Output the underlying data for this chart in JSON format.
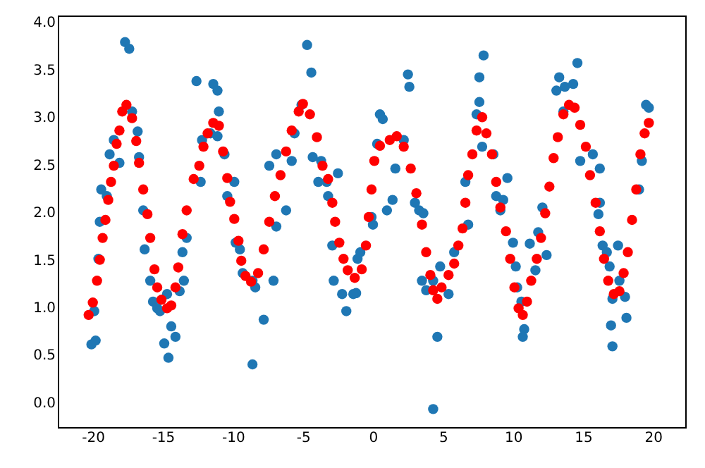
{
  "chart_data": {
    "type": "scatter",
    "xlim": [
      -22.5,
      22.3
    ],
    "ylim": [
      -0.26,
      4.07
    ],
    "xticks": [
      -20,
      -15,
      -10,
      -5,
      0,
      5,
      10,
      15,
      20
    ],
    "yticks": [
      {
        "value": 0,
        "label": "0.0"
      },
      {
        "value": 0.5,
        "label": "0.5"
      },
      {
        "value": 1,
        "label": "1.0"
      },
      {
        "value": 1.5,
        "label": "1.5"
      },
      {
        "value": 2,
        "label": "2.0"
      },
      {
        "value": 2.5,
        "label": "2.5"
      },
      {
        "value": 3,
        "label": "3.0"
      },
      {
        "value": 3.5,
        "label": "3.5"
      },
      {
        "value": 4,
        "label": "4.0"
      }
    ],
    "grid": false,
    "marker": "circle",
    "series": [
      {
        "color": "#1f77b4",
        "x": [
          -20.1,
          -19.8,
          -19.9,
          -19.6,
          -19.5,
          -19.0,
          -19.4,
          -18.8,
          -18.1,
          -18.5,
          -17.7,
          -17.4,
          -17.2,
          -16.8,
          -16.7,
          -16.4,
          -16.3,
          -15.9,
          -15.7,
          -15.4,
          -15.2,
          -14.9,
          -14.4,
          -14.6,
          -14.1,
          -14.7,
          -13.8,
          -13.6,
          -13.5,
          -13.3,
          -12.6,
          -12.3,
          -12.2,
          -11.6,
          -11.4,
          -11.1,
          -11.0,
          -11.1,
          -10.6,
          -10.4,
          -9.9,
          -9.8,
          -9.5,
          -9.3,
          -8.6,
          -8.4,
          -8.6,
          -7.8,
          -7.4,
          -6.9,
          -7.1,
          -6.9,
          -6.2,
          -5.8,
          -5.6,
          -5.1,
          -4.7,
          -4.4,
          -4.3,
          -3.9,
          -3.7,
          -3.3,
          -3.2,
          -2.9,
          -2.8,
          -2.2,
          -1.9,
          -2.5,
          -1.1,
          -1.2,
          -1.4,
          -0.9,
          -0.1,
          0.0,
          0.3,
          0.5,
          0.7,
          1.0,
          1.4,
          2.5,
          2.6,
          2.2,
          1.6,
          3.0,
          3.3,
          3.6,
          3.5,
          3.8,
          4.3,
          4.8,
          4.6,
          4.3,
          5.4,
          5.8,
          6.6,
          6.8,
          7.4,
          7.6,
          7.9,
          7.8,
          7.6,
          8.6,
          8.8,
          9.3,
          9.1,
          9.6,
          10.0,
          10.2,
          10.3,
          10.6,
          10.8,
          10.7,
          11.2,
          11.6,
          11.8,
          12.1,
          12.4,
          13.1,
          13.3,
          13.7,
          13.6,
          14.3,
          14.6,
          14.8,
          15.7,
          16.2,
          16.2,
          16.1,
          16.4,
          16.7,
          16.9,
          17.1,
          17.5,
          17.0,
          17.6,
          18.0,
          18.1,
          17.1,
          19.5,
          19.7,
          19.2,
          19.0
        ],
        "values": [
          0.61,
          0.65,
          0.96,
          1.51,
          1.9,
          2.17,
          2.24,
          2.61,
          2.52,
          2.76,
          3.79,
          3.72,
          3.06,
          2.85,
          2.58,
          2.02,
          1.61,
          1.28,
          1.06,
          0.99,
          0.96,
          0.62,
          0.8,
          0.47,
          0.69,
          1.14,
          1.17,
          1.58,
          1.28,
          1.73,
          3.38,
          2.32,
          2.76,
          2.83,
          3.35,
          3.28,
          3.06,
          2.8,
          2.61,
          2.17,
          2.32,
          1.68,
          1.61,
          1.36,
          1.28,
          1.21,
          0.4,
          0.87,
          2.49,
          2.61,
          1.28,
          1.85,
          2.02,
          2.54,
          2.83,
          3.13,
          3.76,
          3.47,
          2.58,
          2.32,
          2.54,
          2.32,
          2.17,
          1.65,
          1.28,
          1.14,
          0.96,
          2.41,
          1.51,
          1.15,
          1.14,
          1.58,
          1.95,
          1.87,
          2.72,
          3.03,
          2.98,
          2.02,
          2.13,
          3.45,
          3.32,
          2.76,
          2.46,
          2.1,
          2.02,
          1.99,
          1.28,
          1.18,
          1.28,
          1.43,
          0.69,
          -0.07,
          1.14,
          1.58,
          2.32,
          1.87,
          3.03,
          3.16,
          3.65,
          2.69,
          3.42,
          2.61,
          2.17,
          2.13,
          2.02,
          2.36,
          1.68,
          1.43,
          1.21,
          1.06,
          0.77,
          0.69,
          1.67,
          1.39,
          1.79,
          2.05,
          1.55,
          3.28,
          3.42,
          3.32,
          3.06,
          3.35,
          3.57,
          2.54,
          2.61,
          2.46,
          2.1,
          1.98,
          1.65,
          1.58,
          1.43,
          1.09,
          1.65,
          0.81,
          1.28,
          1.11,
          0.89,
          0.59,
          3.13,
          3.1,
          2.54,
          2.24
        ]
      },
      {
        "color": "#ff0000",
        "x": [
          -20.3,
          -20.0,
          -19.7,
          -19.5,
          -19.3,
          -19.1,
          -18.9,
          -18.7,
          -18.5,
          -18.3,
          -18.1,
          -17.9,
          -17.6,
          -17.2,
          -16.9,
          -16.7,
          -16.4,
          -16.1,
          -15.9,
          -15.6,
          -15.4,
          -15.1,
          -14.7,
          -14.4,
          -14.1,
          -13.9,
          -13.6,
          -13.3,
          -12.8,
          -12.4,
          -12.1,
          -11.8,
          -11.4,
          -11.0,
          -10.7,
          -10.4,
          -10.2,
          -9.9,
          -9.6,
          -9.4,
          -9.1,
          -8.7,
          -8.2,
          -7.8,
          -7.4,
          -7.0,
          -6.6,
          -6.2,
          -5.8,
          -5.3,
          -5.0,
          -4.5,
          -4.0,
          -3.6,
          -3.2,
          -2.9,
          -2.7,
          -2.4,
          -2.1,
          -1.8,
          -1.3,
          -0.8,
          -0.5,
          -0.3,
          -0.1,
          0.1,
          0.5,
          1.2,
          1.7,
          2.2,
          2.7,
          3.1,
          3.5,
          3.8,
          4.1,
          4.3,
          4.6,
          4.9,
          5.4,
          5.8,
          6.1,
          6.4,
          6.6,
          6.8,
          7.1,
          7.4,
          7.8,
          8.1,
          8.5,
          8.8,
          9.1,
          9.5,
          9.8,
          10.1,
          10.4,
          10.7,
          11.0,
          11.3,
          11.7,
          12.0,
          12.3,
          12.6,
          12.9,
          13.2,
          13.6,
          14.0,
          14.4,
          14.8,
          15.2,
          15.5,
          15.9,
          16.2,
          16.5,
          16.8,
          17.2,
          17.6,
          17.9,
          18.2,
          18.5,
          18.8,
          19.1,
          19.4,
          19.7
        ],
        "values": [
          0.92,
          1.05,
          1.28,
          1.5,
          1.73,
          1.92,
          2.13,
          2.32,
          2.49,
          2.72,
          2.86,
          3.06,
          3.13,
          2.99,
          2.75,
          2.52,
          2.24,
          1.98,
          1.73,
          1.4,
          1.21,
          1.08,
          0.99,
          1.02,
          1.21,
          1.42,
          1.77,
          2.02,
          2.35,
          2.49,
          2.69,
          2.83,
          2.94,
          2.91,
          2.64,
          2.36,
          2.11,
          1.93,
          1.7,
          1.49,
          1.33,
          1.27,
          1.36,
          1.61,
          1.9,
          2.17,
          2.39,
          2.64,
          2.86,
          3.06,
          3.14,
          3.03,
          2.79,
          2.49,
          2.35,
          2.1,
          1.9,
          1.68,
          1.51,
          1.39,
          1.31,
          1.4,
          1.65,
          1.95,
          2.24,
          2.54,
          2.7,
          2.76,
          2.8,
          2.69,
          2.46,
          2.2,
          1.87,
          1.58,
          1.34,
          1.18,
          1.09,
          1.21,
          1.34,
          1.46,
          1.65,
          1.83,
          2.1,
          2.39,
          2.61,
          2.86,
          3.0,
          2.83,
          2.61,
          2.32,
          2.05,
          1.8,
          1.51,
          1.21,
          0.99,
          0.92,
          1.06,
          1.28,
          1.51,
          1.73,
          1.99,
          2.27,
          2.57,
          2.79,
          3.03,
          3.13,
          3.1,
          2.92,
          2.69,
          2.39,
          2.1,
          1.8,
          1.51,
          1.28,
          1.14,
          1.17,
          1.36,
          1.58,
          1.92,
          2.24,
          2.61,
          2.83,
          2.94
        ]
      }
    ]
  }
}
